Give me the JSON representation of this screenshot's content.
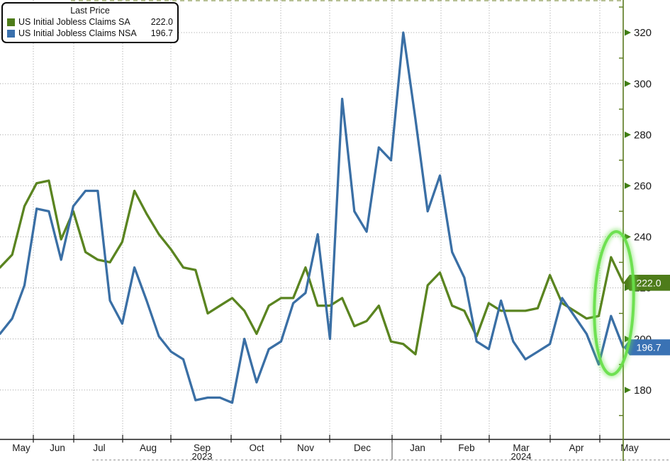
{
  "legend": {
    "title": "Last Price",
    "items": [
      {
        "label": "US Initial Jobless Claims SA",
        "value": "222.0",
        "color": "#4e7c1a"
      },
      {
        "label": "US Initial Jobless Claims NSA",
        "value": "196.7",
        "color": "#3a70ad"
      }
    ]
  },
  "chart_data": {
    "type": "line",
    "title": "",
    "x_labels": [
      "May",
      "Jun",
      "Jul",
      "Aug",
      "Sep",
      "Oct",
      "Nov",
      "Dec",
      "Jan",
      "Feb",
      "Mar",
      "Apr",
      "May"
    ],
    "year_labels": [
      "2023",
      "2024"
    ],
    "y_ticks": [
      180,
      200,
      220,
      240,
      260,
      280,
      300,
      320
    ],
    "ylim": [
      161,
      333
    ],
    "grid": "dotted",
    "legend_position": "top-left",
    "x_description": "weekly data, May 2023 - May 2024",
    "series": [
      {
        "name": "US Initial Jobless Claims SA",
        "color": "#5a8420",
        "last_price": 222.0,
        "values": [
          228,
          233,
          252,
          261,
          262,
          239,
          250,
          234,
          231,
          230,
          238,
          258,
          249,
          241,
          235,
          228,
          227,
          210,
          213,
          216,
          211,
          202,
          213,
          216,
          216,
          228,
          213,
          213,
          216,
          205,
          207,
          213,
          199,
          198,
          194,
          221,
          226,
          213,
          211,
          201,
          214,
          211,
          211,
          211,
          212,
          225,
          214,
          211,
          208,
          209,
          232,
          222
        ]
      },
      {
        "name": "US Initial Jobless Claims NSA",
        "color": "#3a6fa5",
        "last_price": 196.7,
        "values": [
          202,
          208,
          221,
          251,
          250,
          231,
          252,
          258,
          258,
          215,
          206,
          228,
          215,
          201,
          195,
          192,
          176,
          177,
          177,
          175,
          200,
          183,
          196,
          199,
          214,
          218,
          241,
          200,
          294,
          250,
          242,
          275,
          270,
          320,
          286,
          250,
          264,
          234,
          224,
          199,
          196,
          215,
          199,
          192,
          195,
          198,
          216,
          209,
          202,
          190,
          209,
          196.7
        ]
      }
    ],
    "badges": [
      {
        "text": "222.0",
        "color": "#4e7c1a"
      },
      {
        "text": "196.7",
        "color": "#3a72b4"
      }
    ],
    "annotations": {
      "highlight_ellipse_color": "#67df49"
    },
    "axis_colors": {
      "right_axis": "#5a7a1e",
      "tick_arrow": "#3f7d12",
      "bottom_axis": "#1a1a1a"
    }
  }
}
